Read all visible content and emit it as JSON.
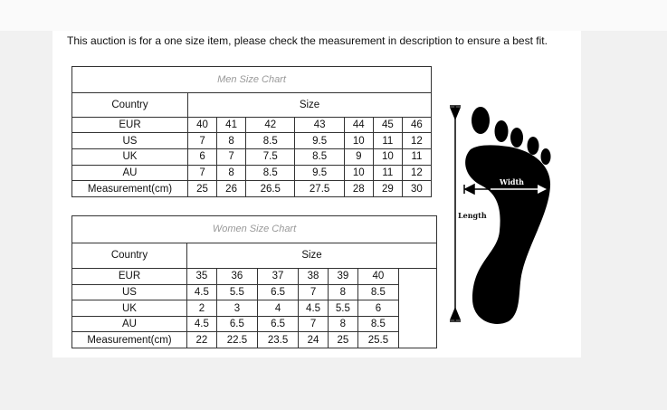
{
  "notice": "This auction is for a one size item, please check the measurement in description to ensure a best fit.",
  "men": {
    "title": "Men Size Chart",
    "header": [
      "Country",
      "Size"
    ],
    "rows": [
      {
        "label": "EUR",
        "values": [
          "40",
          "41",
          "42",
          "43",
          "44",
          "45",
          "46"
        ]
      },
      {
        "label": "US",
        "values": [
          "7",
          "8",
          "8.5",
          "9.5",
          "10",
          "11",
          "12"
        ]
      },
      {
        "label": "UK",
        "values": [
          "6",
          "7",
          "7.5",
          "8.5",
          "9",
          "10",
          "11"
        ]
      },
      {
        "label": "AU",
        "values": [
          "7",
          "8",
          "8.5",
          "9.5",
          "10",
          "11",
          "12"
        ]
      },
      {
        "label": "Measurement(cm)",
        "values": [
          "25",
          "26",
          "26.5",
          "27.5",
          "28",
          "29",
          "30"
        ]
      }
    ]
  },
  "women": {
    "title": "Women Size Chart",
    "header": [
      "Country",
      "Size"
    ],
    "rows": [
      {
        "label": "EUR",
        "values": [
          "35",
          "36",
          "37",
          "38",
          "39",
          "40"
        ]
      },
      {
        "label": "US",
        "values": [
          "4.5",
          "5.5",
          "6.5",
          "7",
          "8",
          "8.5"
        ]
      },
      {
        "label": "UK",
        "values": [
          "2",
          "3",
          "4",
          "4.5",
          "5.5",
          "6"
        ]
      },
      {
        "label": "AU",
        "values": [
          "4.5",
          "6.5",
          "6.5",
          "7",
          "8",
          "8.5"
        ]
      },
      {
        "label": "Measurement(cm)",
        "values": [
          "22",
          "22.5",
          "23.5",
          "24",
          "25",
          "25.5"
        ]
      }
    ]
  },
  "foot_diagram": {
    "width_label": "Width",
    "length_label": "Length",
    "icon": "foot-silhouette-icon"
  }
}
